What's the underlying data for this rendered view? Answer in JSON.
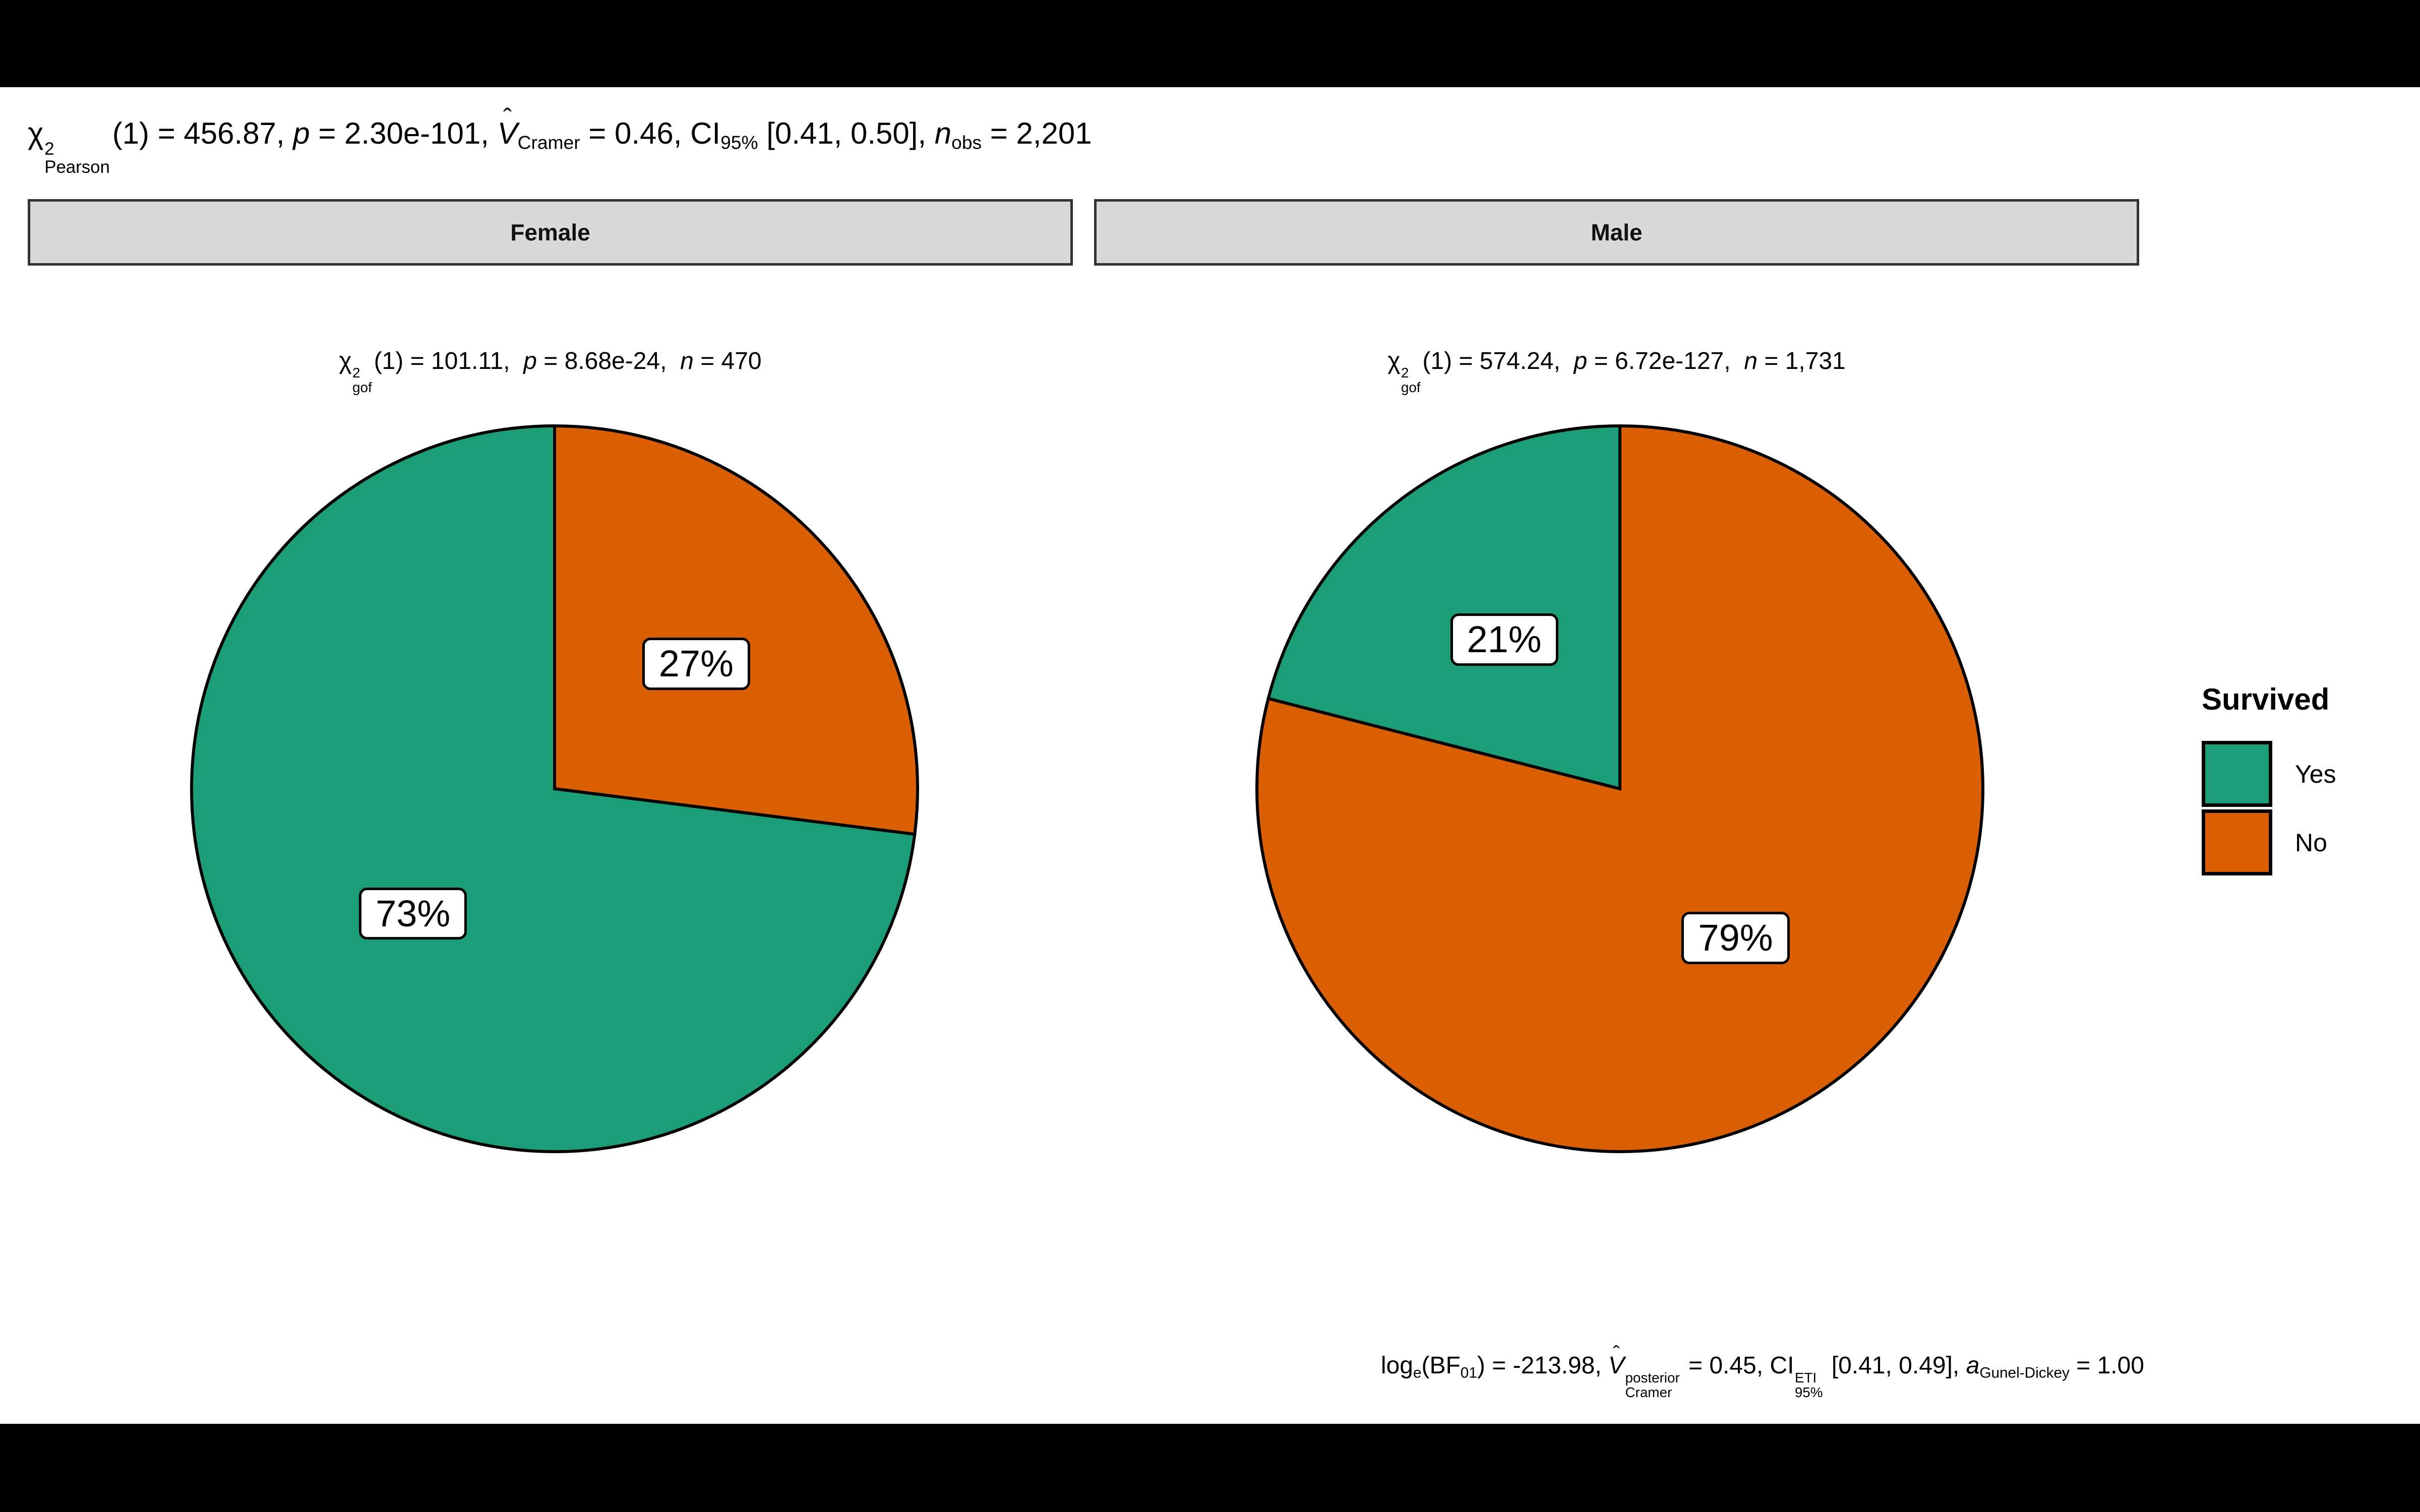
{
  "colors": {
    "yes_green": "#1B9E77",
    "no_orange": "#D95F02",
    "strip_fill": "#D9D9D9",
    "strip_border": "#333333",
    "slice_stroke": "#000000",
    "plot_background": "#FFFFFF",
    "letterbox": "#000000",
    "text": "#000000"
  },
  "glyphs": {
    "hat": "ˆ"
  },
  "stats_title": {
    "text": "χ²Pearson(1) = 456.87, p = 2.30e-101, V̂Cramer = 0.46, CI95% [0.41, 0.50], nobs = 2,201",
    "segments": [
      {
        "t": "χ"
      },
      {
        "stack": {
          "sup": "2",
          "sub": "Pearson"
        }
      },
      {
        "t": "(1) = 456.87, "
      },
      {
        "t": "p",
        "i": true
      },
      {
        "t": " = 2.30e-101, "
      },
      {
        "t": "V",
        "i": true,
        "hat": true
      },
      {
        "t": "Cramer",
        "s": "sub"
      },
      {
        "t": " = 0.46, CI"
      },
      {
        "t": "95%",
        "s": "sub"
      },
      {
        "t": " [0.41, 0.50], "
      },
      {
        "t": "n",
        "i": true
      },
      {
        "t": "obs",
        "s": "sub"
      },
      {
        "t": " = 2,201"
      }
    ]
  },
  "caption": {
    "text": "loge(BF01) = -213.98, V̂posterior Cramer = 0.45, CI ETI 95% [0.41, 0.49], aGunel-Dickey = 1.00",
    "segments": [
      {
        "t": "log"
      },
      {
        "t": "e",
        "s": "sub"
      },
      {
        "t": "(BF"
      },
      {
        "t": "01",
        "s": "sub"
      },
      {
        "t": ") = -213.98, "
      },
      {
        "t": "V",
        "i": true,
        "hat": true
      },
      {
        "stack": {
          "sup": "posterior",
          "sub": "Cramer"
        }
      },
      {
        "t": " = 0.45, CI"
      },
      {
        "stack": {
          "sup": "ETI",
          "sub": "95%"
        }
      },
      {
        "t": " [0.41, 0.49], "
      },
      {
        "t": "a",
        "i": true
      },
      {
        "t": "Gunel-Dickey",
        "s": "sub"
      },
      {
        "t": " = 1.00"
      }
    ]
  },
  "chart_data": {
    "type": "pie",
    "direction": "clockwise",
    "start_angle_deg": 0,
    "slice_label_radius_fraction": 0.52,
    "label_format": "percent",
    "facets": [
      {
        "label": "Female",
        "n": 470,
        "subtitle": {
          "text": "χ²gof (1) = 101.11, p = 8.68e-24, n = 470",
          "segments": [
            {
              "t": "χ"
            },
            {
              "stack": {
                "sup": "2",
                "sub": "gof"
              }
            },
            {
              "t": "(1) = 101.11,  "
            },
            {
              "t": "p",
              "i": true
            },
            {
              "t": " = 8.68e-24,  "
            },
            {
              "t": "n",
              "i": true
            },
            {
              "t": " = 470"
            }
          ]
        },
        "slices": [
          {
            "category": "No",
            "pct": 27
          },
          {
            "category": "Yes",
            "pct": 73
          }
        ]
      },
      {
        "label": "Male",
        "n": 1731,
        "subtitle": {
          "text": "χ²gof (1) = 574.24, p = 6.72e-127, n = 1,731",
          "segments": [
            {
              "t": "χ"
            },
            {
              "stack": {
                "sup": "2",
                "sub": "gof"
              }
            },
            {
              "t": "(1) = 574.24,  "
            },
            {
              "t": "p",
              "i": true
            },
            {
              "t": " = 6.72e-127,  "
            },
            {
              "t": "n",
              "i": true
            },
            {
              "t": " = 1,731"
            }
          ]
        },
        "slices": [
          {
            "category": "No",
            "pct": 79
          },
          {
            "category": "Yes",
            "pct": 21
          }
        ]
      }
    ],
    "legend": {
      "title": "Survived",
      "position": "right",
      "entries": [
        {
          "label": "Yes",
          "color": "#1B9E77"
        },
        {
          "label": "No",
          "color": "#D95F02"
        }
      ]
    }
  }
}
